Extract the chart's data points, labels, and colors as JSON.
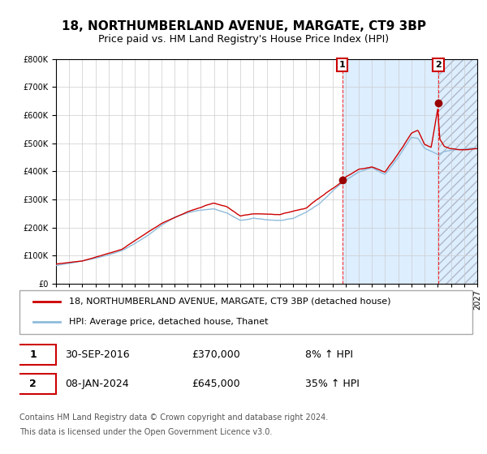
{
  "title": "18, NORTHUMBERLAND AVENUE, MARGATE, CT9 3BP",
  "subtitle": "Price paid vs. HM Land Registry's House Price Index (HPI)",
  "ylim": [
    0,
    800000
  ],
  "yticks": [
    0,
    100000,
    200000,
    300000,
    400000,
    500000,
    600000,
    700000,
    800000
  ],
  "ytick_labels": [
    "£0",
    "£100K",
    "£200K",
    "£300K",
    "£400K",
    "£500K",
    "£600K",
    "£700K",
    "£800K"
  ],
  "xstart_year": 1995,
  "xend_year": 2027,
  "hpi_color": "#8fbcdb",
  "price_color": "#cc0000",
  "sale1_date": "30-SEP-2016",
  "sale1_price": 370000,
  "sale1_hpi_pct": "8%",
  "sale1_year": 2016.75,
  "sale2_date": "08-JAN-2024",
  "sale2_price": 645000,
  "sale2_hpi_pct": "35%",
  "sale2_year": 2024.04,
  "legend_label1": "18, NORTHUMBERLAND AVENUE, MARGATE, CT9 3BP (detached house)",
  "legend_label2": "HPI: Average price, detached house, Thanet",
  "footnote1": "Contains HM Land Registry data © Crown copyright and database right 2024.",
  "footnote2": "This data is licensed under the Open Government Licence v3.0.",
  "background_color": "#ffffff",
  "shade_color": "#ddeeff",
  "grid_color": "#cccccc",
  "title_fontsize": 11,
  "subtitle_fontsize": 9,
  "tick_fontsize": 7,
  "legend_fontsize": 8,
  "ann_fontsize": 9,
  "foot_fontsize": 7
}
